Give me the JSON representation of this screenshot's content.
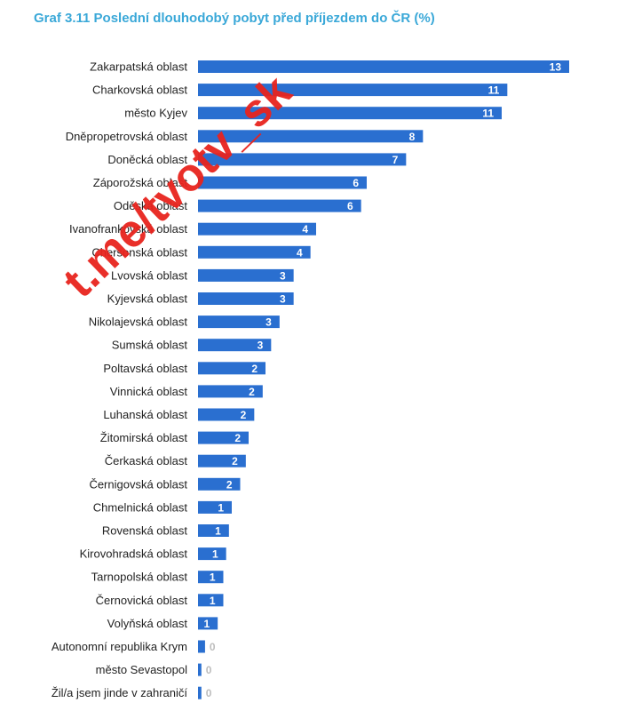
{
  "title": "Graf 3.11 Poslední dlouhodobý pobyt před příjezdem do ČR (%)",
  "watermark": "t.me/tvotv_sk",
  "colors": {
    "bar": "#2a6fd0",
    "title": "#3aa8d8",
    "watermark": "#e8241e"
  },
  "chart_data": {
    "type": "bar",
    "orientation": "horizontal",
    "title": "Graf 3.11 Poslední dlouhodobý pobyt před příjezdem do ČR (%)",
    "xlabel": "",
    "ylabel": "",
    "categories": [
      "Zakarpatská oblast",
      "Charkovská oblast",
      "město Kyjev",
      "Dněpropetrovská oblast",
      "Doněcká oblast",
      "Záporožská oblast",
      "Oděská oblast",
      "Ivanofrankovská oblast",
      "Chersonská oblast",
      "Lvovská oblast",
      "Kyjevská oblast",
      "Nikolajevská oblast",
      "Sumská oblast",
      "Poltavská oblast",
      "Vinnická oblast",
      "Luhanská oblast",
      "Žitomirská oblast",
      "Čerkaská oblast",
      "Černigovská oblast",
      "Chmelnická oblast",
      "Rovenská oblast",
      "Kirovohradská oblast",
      "Tarnopolská oblast",
      "Černovická oblast",
      "Volyňská oblast",
      "Autonomní republika Krym",
      "město Sevastopol",
      "Žil/a jsem jinde v zahraničí"
    ],
    "values": [
      13,
      11,
      11,
      8,
      7,
      6,
      6,
      4,
      4,
      3,
      3,
      3,
      3,
      2,
      2,
      2,
      2,
      2,
      2,
      1,
      1,
      1,
      1,
      1,
      1,
      0,
      0,
      0
    ],
    "bar_lengths": [
      13.2,
      11.0,
      10.8,
      8.0,
      7.4,
      6.0,
      5.8,
      4.2,
      4.0,
      3.4,
      3.4,
      2.9,
      2.6,
      2.4,
      2.3,
      2.0,
      1.8,
      1.7,
      1.5,
      1.2,
      1.1,
      1.0,
      0.9,
      0.9,
      0.7,
      0.25,
      0.12,
      0.12
    ],
    "xlim": [
      0,
      13.2
    ],
    "grid": false,
    "legend": "none"
  }
}
